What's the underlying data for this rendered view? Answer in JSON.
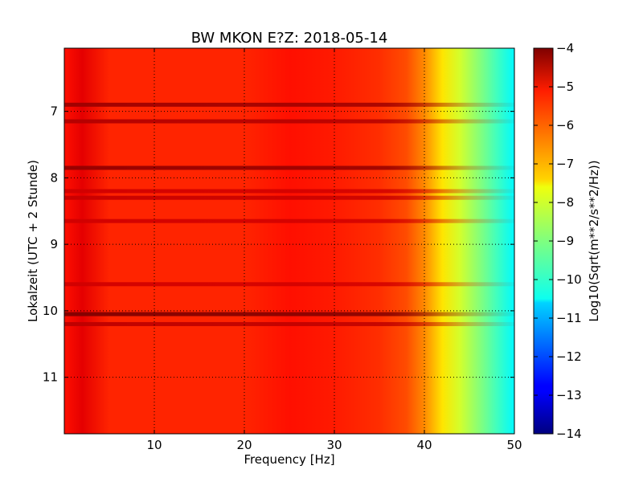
{
  "chart_data": {
    "type": "heatmap",
    "title": "BW MKON E?Z: 2018-05-14",
    "xlabel": "Frequency [Hz]",
    "ylabel": "Lokalzeit (UTC + 2 Stunde)",
    "xlim": [
      0,
      50
    ],
    "ylim": [
      11.85,
      6.05
    ],
    "y_axis_inverted": true,
    "x_ticks": [
      10,
      20,
      30,
      40,
      50
    ],
    "y_ticks": [
      7,
      8,
      9,
      10,
      11
    ],
    "grid": true,
    "colormap": "jet",
    "colorbar": {
      "label": "Log10(Sqrt(m**2/s**2/Hz))",
      "range": [
        -14,
        -4
      ],
      "ticks": [
        -4,
        -5,
        -6,
        -7,
        -8,
        -9,
        -10,
        -11,
        -12,
        -13,
        -14
      ]
    },
    "frequency_profile_hz": [
      0,
      2,
      5,
      10,
      15,
      20,
      25,
      30,
      35,
      38,
      40,
      42,
      44,
      46,
      48,
      50
    ],
    "frequency_profile_value": [
      -5.4,
      -5.0,
      -5.6,
      -5.6,
      -5.6,
      -5.6,
      -5.4,
      -5.5,
      -5.7,
      -6.0,
      -6.6,
      -7.5,
      -8.2,
      -8.9,
      -9.6,
      -10.3
    ],
    "strong_bands": [
      {
        "time": 6.9,
        "value": -4.3
      },
      {
        "time": 7.15,
        "value": -4.5
      },
      {
        "time": 7.85,
        "value": -4.2
      },
      {
        "time": 8.2,
        "value": -4.8
      },
      {
        "time": 8.3,
        "value": -4.7
      },
      {
        "time": 8.65,
        "value": -4.8
      },
      {
        "time": 9.6,
        "value": -4.8
      },
      {
        "time": 10.05,
        "value": -4.0
      },
      {
        "time": 10.2,
        "value": -4.6
      }
    ]
  }
}
